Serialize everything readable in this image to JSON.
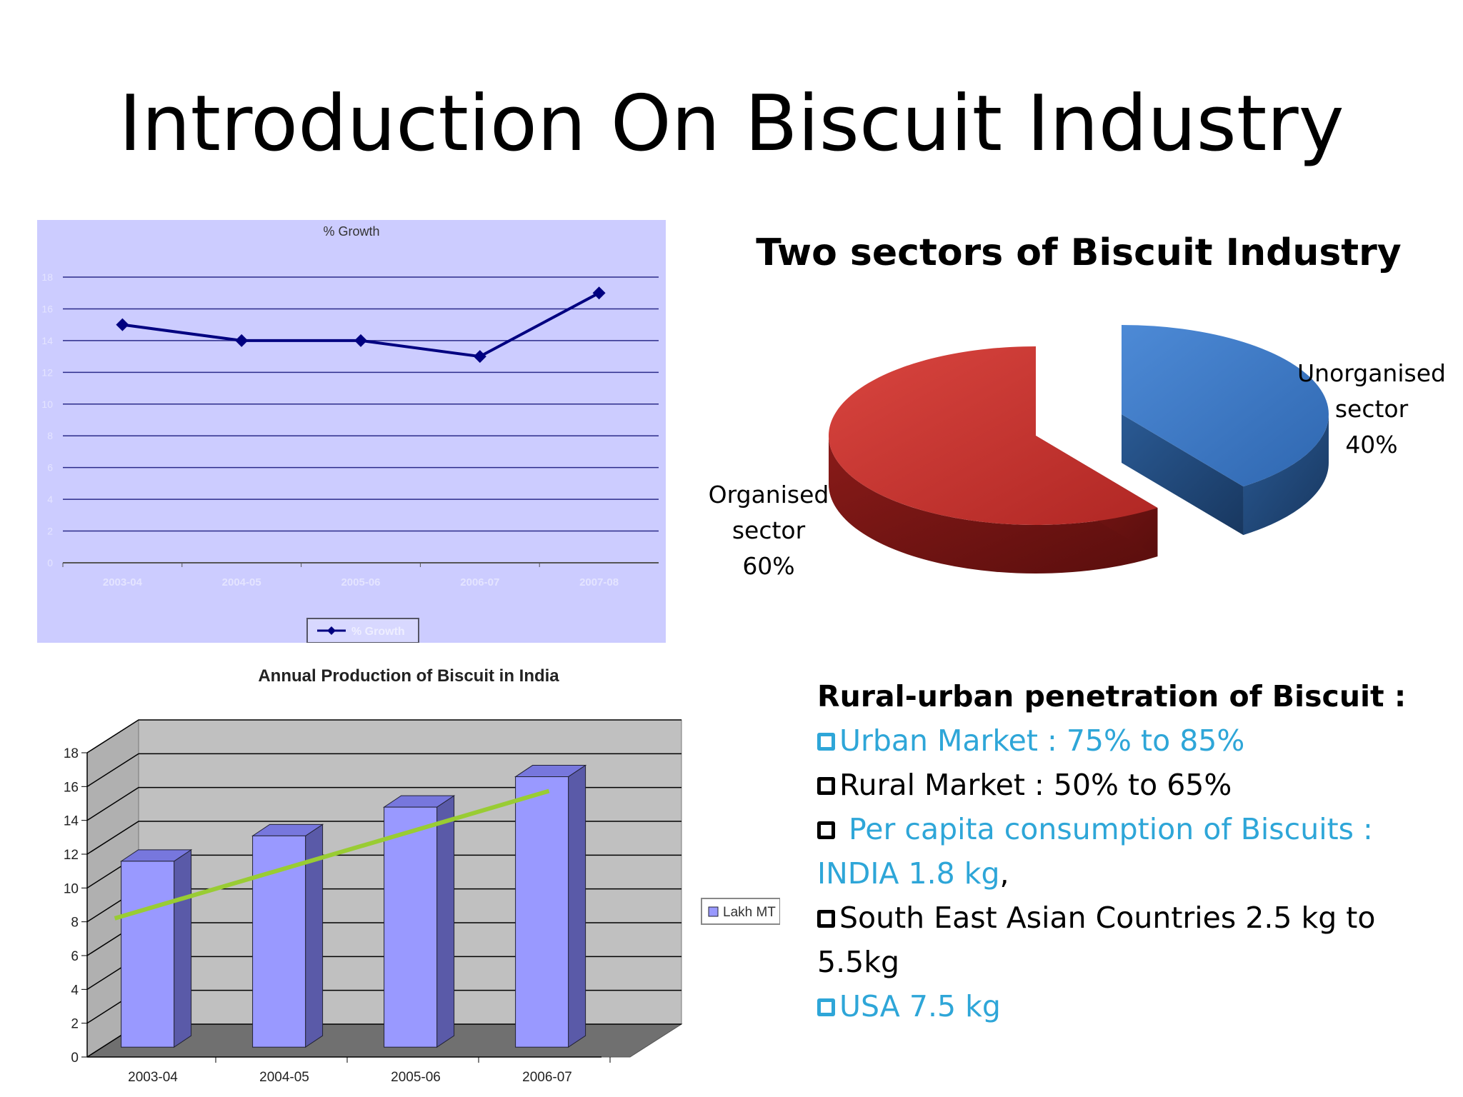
{
  "slide": {
    "title": "Introduction On Biscuit Industry"
  },
  "growth_chart": {
    "title": "% Growth",
    "legend": "% Growth",
    "y_ticks": [
      "0",
      "2",
      "4",
      "6",
      "8",
      "10",
      "12",
      "14",
      "16",
      "18"
    ],
    "colors": {
      "background": "#ccccff",
      "line": "#000080",
      "grid": "#2b2b8a"
    }
  },
  "pie_chart": {
    "title": "Two sectors of Biscuit Industry",
    "unorganised": {
      "line1": "Unorganised",
      "line2": "sector",
      "line3": "40%"
    },
    "organised": {
      "line1": "Organised",
      "line2": "sector",
      "line3": "60%"
    },
    "colors": {
      "organised": "#c0302c",
      "unorganised": "#3a78c4"
    }
  },
  "production_chart": {
    "title": "Annual Production of Biscuit in India",
    "legend": "Lakh MT",
    "y_ticks": [
      "0",
      "2",
      "4",
      "6",
      "8",
      "10",
      "12",
      "14",
      "16",
      "18"
    ],
    "colors": {
      "bar": "#9999ff",
      "trend": "#99cc33",
      "wall": "#c0c0c0"
    }
  },
  "chart_data": [
    {
      "type": "line",
      "title": "% Growth",
      "categories": [
        "2003-04",
        "2004-05",
        "2005-06",
        "2006-07",
        "2007-08"
      ],
      "series": [
        {
          "name": "% Growth",
          "values": [
            15,
            14,
            14,
            13,
            17
          ]
        }
      ],
      "ylim": [
        0,
        18
      ],
      "grid": true,
      "legend": "bottom"
    },
    {
      "type": "pie",
      "title": "Two sectors of Biscuit Industry",
      "slices": [
        {
          "label": "Organised sector",
          "value": 60
        },
        {
          "label": "Unorganised sector",
          "value": 40
        }
      ]
    },
    {
      "type": "bar",
      "title": "Annual Production of Biscuit in India",
      "categories": [
        "2003-04",
        "2004-05",
        "2005-06",
        "2006-07"
      ],
      "series": [
        {
          "name": "Lakh MT",
          "values": [
            11,
            12.5,
            14.2,
            16
          ]
        }
      ],
      "ylim": [
        0,
        18
      ],
      "grid": true,
      "legend": "right"
    }
  ],
  "penetration": {
    "heading": "Rural-urban penetration of Biscuit :",
    "urban": "Urban Market : 75% to 85%",
    "rural": "Rural Market : 50% to 65%",
    "per_capita_a": "Per capita consumption of Biscuits :",
    "per_capita_b": "INDIA 1.8 kg",
    "comma": ",",
    "sea_a": "South East Asian Countries 2.5 kg to",
    "sea_b": "5.5kg",
    "usa": "USA 7.5 kg"
  }
}
